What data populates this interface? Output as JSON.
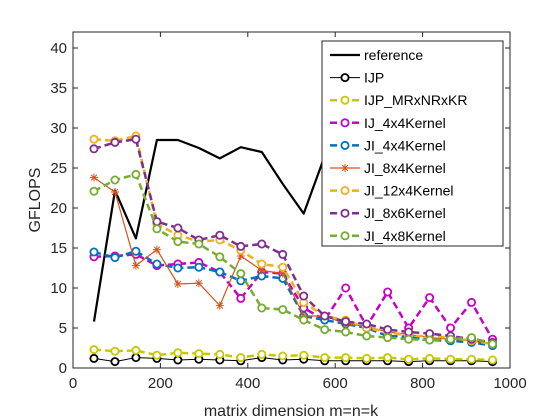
{
  "chart_data": {
    "type": "line",
    "title": "",
    "xlabel": "matrix dimension m=n=k",
    "ylabel": "GFLOPS",
    "xlim": [
      0,
      1000
    ],
    "ylim": [
      0,
      42
    ],
    "xticks": [
      0,
      200,
      400,
      600,
      800,
      1000
    ],
    "yticks": [
      0,
      5,
      10,
      15,
      20,
      25,
      30,
      35,
      40
    ],
    "grid": false,
    "legend_position": "top-right",
    "x": [
      48,
      96,
      144,
      192,
      240,
      288,
      336,
      384,
      432,
      480,
      528,
      576,
      624,
      672,
      720,
      768,
      816,
      864,
      912,
      960
    ],
    "series": [
      {
        "name": "reference",
        "color": "#000000",
        "style": "solid",
        "marker": "none",
        "width": 2.2,
        "values": [
          5.8,
          22.2,
          16.2,
          28.5,
          28.5,
          27.5,
          26.2,
          27.6,
          27.0,
          23.0,
          19.3,
          26.5,
          null,
          null,
          null,
          null,
          null,
          null,
          null,
          null
        ]
      },
      {
        "name": "IJP",
        "color": "#000000",
        "style": "solid",
        "marker": "circle",
        "width": 1,
        "values": [
          1.2,
          0.8,
          1.3,
          1.2,
          1.0,
          1.1,
          1.0,
          0.9,
          1.3,
          1.0,
          1.1,
          0.9,
          0.9,
          0.9,
          0.9,
          0.8,
          0.9,
          0.9,
          0.9,
          0.8
        ]
      },
      {
        "name": "IJP_MRxNRxKR",
        "color": "#c8c800",
        "style": "dashed",
        "marker": "circle",
        "width": 2.5,
        "values": [
          2.3,
          2.1,
          2.2,
          1.6,
          1.9,
          1.8,
          1.7,
          1.3,
          1.7,
          1.5,
          1.6,
          1.3,
          1.3,
          1.2,
          1.3,
          1.1,
          1.2,
          1.1,
          1.1,
          1.0
        ]
      },
      {
        "name": "IJ_4x4Kernel",
        "color": "#c800c8",
        "style": "dashed",
        "marker": "circle",
        "width": 2.5,
        "values": [
          13.9,
          14.0,
          14.2,
          12.8,
          13.0,
          13.2,
          12.0,
          8.7,
          12.0,
          11.8,
          7.5,
          6.0,
          10.0,
          5.2,
          9.5,
          5.0,
          8.8,
          5.0,
          8.2,
          3.6
        ]
      },
      {
        "name": "JI_4x4Kernel",
        "color": "#0072bd",
        "style": "dashed",
        "marker": "circle",
        "width": 2.5,
        "values": [
          14.5,
          13.8,
          14.6,
          13.0,
          12.5,
          12.6,
          12.0,
          10.9,
          11.5,
          11.2,
          6.5,
          6.0,
          5.5,
          5.0,
          4.0,
          3.9,
          3.5,
          3.4,
          3.2,
          2.8
        ]
      },
      {
        "name": "JI_8x4Kernel",
        "color": "#d95319",
        "style": "solid",
        "marker": "asterisk",
        "width": 1.2,
        "values": [
          23.8,
          22.0,
          12.8,
          14.8,
          10.5,
          10.6,
          7.8,
          14.0,
          12.2,
          11.8,
          6.5,
          6.5,
          5.5,
          5.2,
          4.5,
          4.2,
          3.8,
          3.6,
          3.4,
          3.0
        ]
      },
      {
        "name": "JI_12x4Kernel",
        "color": "#edb120",
        "style": "dashed",
        "marker": "circle",
        "width": 2.5,
        "values": [
          28.6,
          28.4,
          29.0,
          18.0,
          16.6,
          15.8,
          16.0,
          14.7,
          13.0,
          12.6,
          8.2,
          6.5,
          6.0,
          5.0,
          4.5,
          4.0,
          4.0,
          3.8,
          3.4,
          3.0
        ]
      },
      {
        "name": "JI_8x6Kernel",
        "color": "#7e2f8e",
        "style": "dashed",
        "marker": "circle",
        "width": 2.5,
        "values": [
          27.4,
          28.2,
          28.6,
          18.3,
          17.5,
          16.0,
          16.6,
          15.2,
          15.5,
          14.2,
          9.0,
          6.5,
          5.8,
          5.5,
          4.8,
          4.5,
          4.3,
          4.0,
          3.6,
          3.2
        ]
      },
      {
        "name": "JI_4x8Kernel",
        "color": "#77ac30",
        "style": "dashed",
        "marker": "circle",
        "width": 2.5,
        "values": [
          22.1,
          23.5,
          24.2,
          17.4,
          15.8,
          15.5,
          13.9,
          11.8,
          7.5,
          7.3,
          6.0,
          4.8,
          4.5,
          4.0,
          3.8,
          3.6,
          3.5,
          3.6,
          3.8,
          3.0
        ]
      }
    ]
  }
}
